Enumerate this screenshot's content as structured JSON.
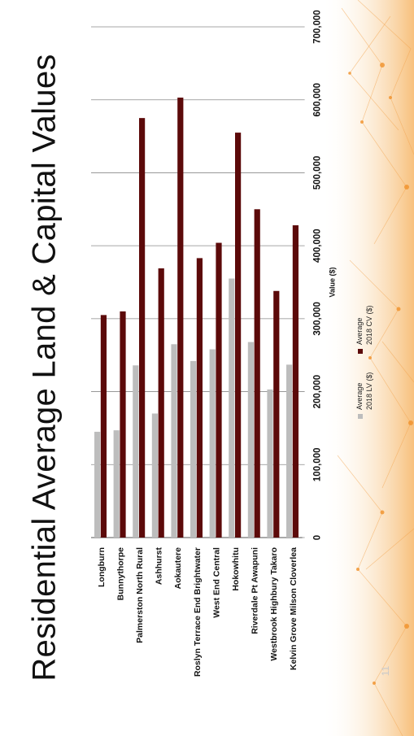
{
  "slide": {
    "title": "Residential Average Land & Capital Values",
    "page_number": "11"
  },
  "colors": {
    "lv": "#bdbdbd",
    "cv": "#5c0a0a",
    "grid": "#8a8a8a",
    "axis": "#555555",
    "decor": "#f3a34a"
  },
  "chart_data": {
    "type": "bar",
    "orientation": "rotated-90",
    "categories": [
      "Longburn",
      "Bunnythorpe",
      "Palmerston North Rural",
      "Ashhurst",
      "Aokautere",
      "Roslyn Terrace End Brightwater",
      "West End Central",
      "Hokowhitu",
      "Riverdale Pt Awapuni",
      "Westbrook Highbury Takaro",
      "Kelvin Grove Milson Cloverlea"
    ],
    "series": [
      {
        "name": "Average 2018 LV ($)",
        "values": [
          145000,
          147000,
          236000,
          170000,
          265000,
          242000,
          258000,
          355000,
          268000,
          203000,
          237000
        ]
      },
      {
        "name": "Average 2018 CV ($)",
        "values": [
          305000,
          310000,
          575000,
          369000,
          603000,
          383000,
          404000,
          555000,
          450000,
          338000,
          428000
        ]
      }
    ],
    "ylabel": "Value ($)",
    "xlabel": "",
    "ylim": [
      0,
      700000
    ],
    "yticks": [
      "0",
      "100,000",
      "200,000",
      "300,000",
      "400,000",
      "500,000",
      "600,000",
      "700,000"
    ],
    "grid": true,
    "legend_position": "inside-right"
  }
}
